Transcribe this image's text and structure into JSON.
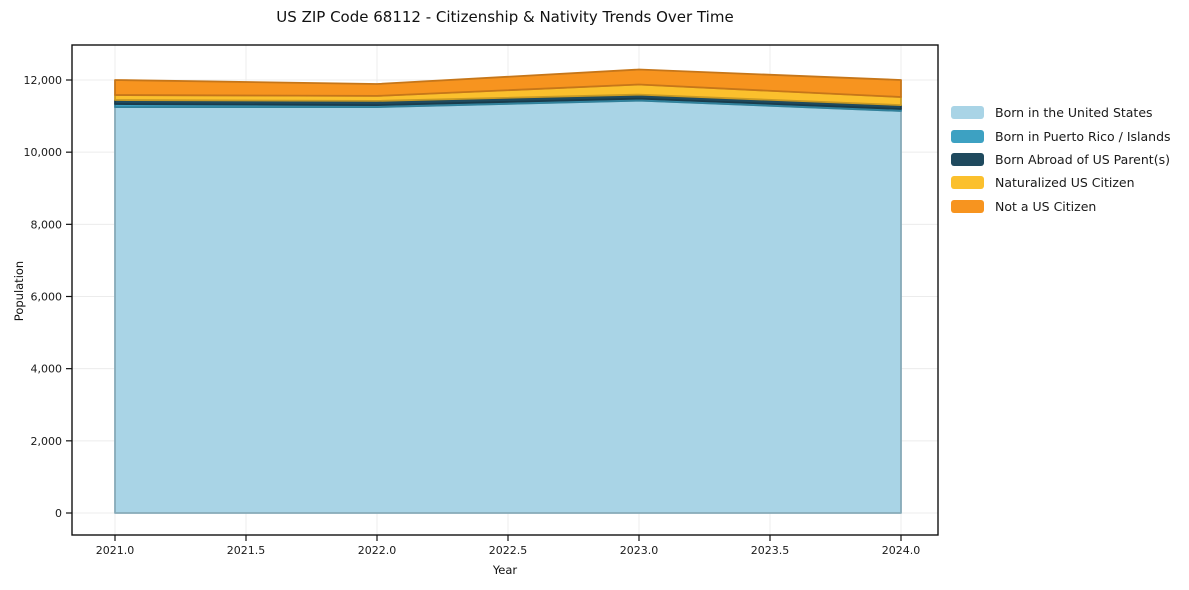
{
  "chart_data": {
    "type": "area",
    "stacked": true,
    "title": "US ZIP Code 68112 - Citizenship & Nativity Trends Over Time",
    "xlabel": "Year",
    "ylabel": "Population",
    "grid": true,
    "legend_position": "right",
    "x": [
      2021,
      2022,
      2023,
      2024
    ],
    "x_tick_values": [
      2021.0,
      2021.5,
      2022.0,
      2022.5,
      2023.0,
      2023.5,
      2024.0
    ],
    "x_ticks": [
      "2021.0",
      "2021.5",
      "2022.0",
      "2022.5",
      "2023.0",
      "2023.5",
      "2024.0"
    ],
    "y_tick_values": [
      0,
      2000,
      4000,
      6000,
      8000,
      10000,
      12000
    ],
    "y_ticks": [
      "0",
      "2,000",
      "4,000",
      "6,000",
      "8,000",
      "10,000",
      "12,000"
    ],
    "xlim": [
      2020.84,
      2024.14
    ],
    "ylim": [
      -660,
      12980
    ],
    "series": [
      {
        "name": "Born in the United States",
        "color": "#a9d4e6",
        "values": [
          11250,
          11250,
          11430,
          11140
        ]
      },
      {
        "name": "Born in Puerto Rico / Islands",
        "color": "#3da1c2",
        "values": [
          85,
          55,
          55,
          55
        ]
      },
      {
        "name": "Born Abroad of US Parent(s)",
        "color": "#1f4a5e",
        "values": [
          110,
          115,
          110,
          110
        ]
      },
      {
        "name": "Naturalized US Citizen",
        "color": "#fbc02d",
        "values": [
          140,
          140,
          280,
          225
        ]
      },
      {
        "name": "Not a US Citizen",
        "color": "#f7941f",
        "values": [
          415,
          330,
          415,
          470
        ]
      }
    ],
    "totals": [
      12000,
      11890,
      12290,
      12000
    ]
  }
}
